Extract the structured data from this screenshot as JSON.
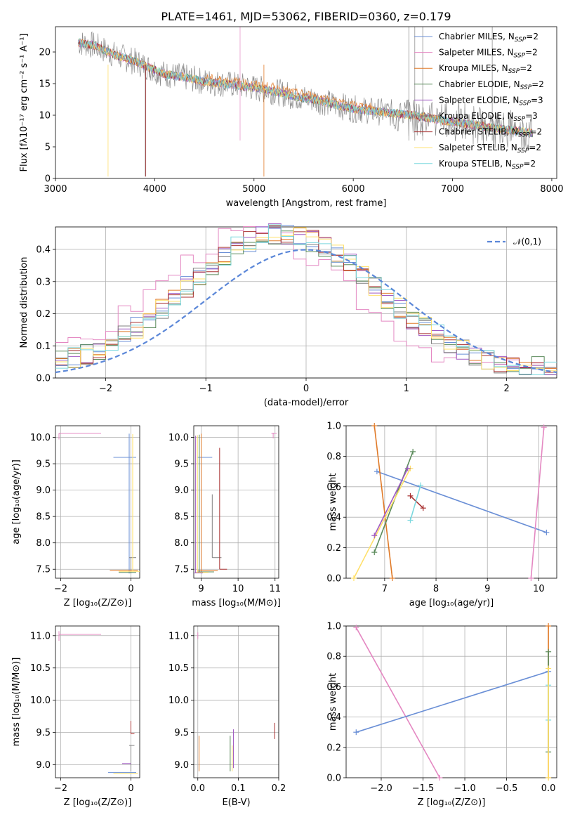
{
  "figure_title": "PLATE=1461, MJD=53062, FIBERID=0360, z=0.179",
  "colors": [
    "#6a8fd6",
    "#e488c2",
    "#e07a28",
    "#5a8a5a",
    "#a05ac2",
    "#808080",
    "#a83030",
    "#ffe06a",
    "#7ad8de"
  ],
  "legend_labels": [
    [
      "Chabrier MILES, N",
      "SSP",
      "=2"
    ],
    [
      "Salpeter MILES, N",
      "SSP",
      "=2"
    ],
    [
      "Kroupa MILES, N",
      "SSP",
      "=2"
    ],
    [
      "Chabrier ELODIE, N",
      "SSP",
      "=2"
    ],
    [
      "Salpeter ELODIE, N",
      "SSP",
      "=3"
    ],
    [
      "Kroupa ELODIE, N",
      "SSP",
      "=3"
    ],
    [
      "Chabrier STELIB, N",
      "SSP",
      "=2"
    ],
    [
      "Salpeter STELIB, N",
      "SSP",
      "=2"
    ],
    [
      "Kroupa STELIB, N",
      "SSP",
      "=2"
    ]
  ],
  "chart_data": [
    {
      "id": "spectrum",
      "type": "line",
      "title": "PLATE=1461, MJD=53062, FIBERID=0360, z=0.179",
      "xlabel": "wavelength [Angstrom, rest frame]",
      "ylabel": "Flux [fλ10⁻¹⁷ erg cm⁻² s⁻¹ A⁻¹]",
      "xlim": [
        3000,
        8050
      ],
      "ylim": [
        0,
        24
      ],
      "xticks": [
        3000,
        4000,
        5000,
        6000,
        7000,
        8000
      ],
      "yticks": [
        0,
        5,
        10,
        15,
        20
      ],
      "grid": false,
      "legend": "top-right",
      "continuum": [
        [
          3230,
          21.5
        ],
        [
          3400,
          21
        ],
        [
          3600,
          19.5
        ],
        [
          3800,
          18.5
        ],
        [
          3950,
          17.5
        ],
        [
          4100,
          16.5
        ],
        [
          4300,
          16
        ],
        [
          4500,
          15.3
        ],
        [
          4800,
          14.8
        ],
        [
          5000,
          14.3
        ],
        [
          5200,
          13.8
        ],
        [
          5400,
          13
        ],
        [
          5600,
          12.5
        ],
        [
          5800,
          11.7
        ],
        [
          6000,
          11
        ],
        [
          6300,
          10.5
        ],
        [
          6600,
          10
        ],
        [
          6900,
          9.2
        ],
        [
          7200,
          8.5
        ],
        [
          7500,
          7.8
        ],
        [
          7800,
          7.2
        ]
      ]
    },
    {
      "id": "residuals",
      "type": "line",
      "xlabel": "(data-model)/error",
      "ylabel": "Normed distribution",
      "xlim": [
        -2.5,
        2.5
      ],
      "ylim": [
        0,
        0.47
      ],
      "xticks": [
        -2,
        -1,
        0,
        1,
        2
      ],
      "yticks": [
        0.0,
        0.1,
        0.2,
        0.3,
        0.4
      ],
      "grid": true,
      "legend": "top-right",
      "legend_label": "𝒩(0,1)"
    },
    {
      "id": "age_vs_Z",
      "type": "scatter",
      "xlabel": "Z [log₁₀(Z/Z⊙)]",
      "ylabel": "age  [log₁₀(age/yr)]",
      "xlim": [
        -2.15,
        0.25
      ],
      "ylim": [
        7.33,
        10.22
      ],
      "xticks": [
        -2,
        0
      ],
      "yticks": [
        7.5,
        8.0,
        8.5,
        9.0,
        9.5,
        10.0
      ],
      "grid": true
    },
    {
      "id": "age_vs_mass",
      "type": "scatter",
      "xlabel": "mass [log₁₀(M/M⊙)]",
      "xlim": [
        8.8,
        11.1
      ],
      "ylim": [
        7.33,
        10.22
      ],
      "xticks": [
        9,
        10,
        11
      ],
      "yticks": [
        7.5,
        8.0,
        8.5,
        9.0,
        9.5,
        10.0
      ],
      "grid": true
    },
    {
      "id": "weight_vs_age",
      "type": "scatter",
      "xlabel": "age  [log₁₀(age/yr)]",
      "ylabel": "mass weight",
      "xlim": [
        6.25,
        10.35
      ],
      "ylim": [
        0,
        1
      ],
      "xticks": [
        7,
        8,
        9,
        10
      ],
      "yticks": [
        0.0,
        0.2,
        0.4,
        0.6,
        0.8,
        1.0
      ],
      "grid": true
    },
    {
      "id": "mass_vs_Z",
      "type": "scatter",
      "xlabel": "Z [log₁₀(Z/Z⊙)]",
      "ylabel": "mass [log₁₀(M/M⊙)]",
      "xlim": [
        -2.15,
        0.25
      ],
      "ylim": [
        8.8,
        11.15
      ],
      "xticks": [
        -2,
        0
      ],
      "yticks": [
        9.0,
        9.5,
        10.0,
        10.5,
        11.0
      ],
      "grid": true
    },
    {
      "id": "mass_vs_ebv",
      "type": "scatter",
      "xlabel": "E(B-V)",
      "xlim": [
        -0.01,
        0.2
      ],
      "ylim": [
        8.8,
        11.15
      ],
      "xticks": [
        0.0,
        0.1,
        0.2
      ],
      "yticks": [
        9.0,
        9.5,
        10.0,
        10.5,
        11.0
      ],
      "grid": true
    },
    {
      "id": "weight_vs_Z",
      "type": "scatter",
      "xlabel": "Z [log₁₀(Z/Z⊙)]",
      "ylabel": "mass weight",
      "xlim": [
        -2.42,
        0.1
      ],
      "ylim": [
        0,
        1
      ],
      "xticks": [
        -2.0,
        -1.5,
        -1.0,
        -0.5,
        0.0
      ],
      "yticks": [
        0.0,
        0.2,
        0.4,
        0.6,
        0.8,
        1.0
      ],
      "grid": true
    }
  ]
}
